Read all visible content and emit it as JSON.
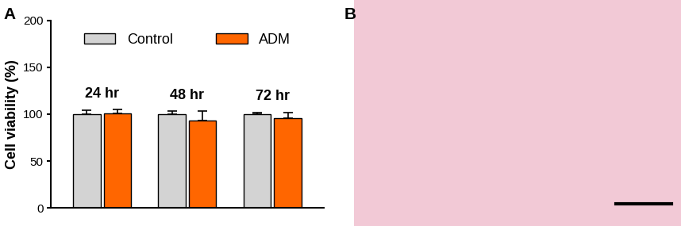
{
  "chart_data": {
    "type": "bar",
    "y_label": "Cell viability (%)",
    "categories": [
      "24 hr",
      "48 hr",
      "72 hr"
    ],
    "series": [
      {
        "name": "Control",
        "color": "#d3d3d3",
        "values": [
          100,
          100,
          100
        ],
        "errors": [
          4,
          3,
          2
        ]
      },
      {
        "name": "ADM",
        "color": "#ff6600",
        "values": [
          101,
          93,
          96
        ],
        "errors": [
          4,
          10,
          6
        ]
      }
    ],
    "ylim": [
      0,
      200
    ],
    "yticks": [
      0,
      50,
      100,
      150,
      200
    ],
    "legend": "upper center",
    "tick_labels": "y"
  },
  "panel_labels": [
    "A",
    "B"
  ]
}
